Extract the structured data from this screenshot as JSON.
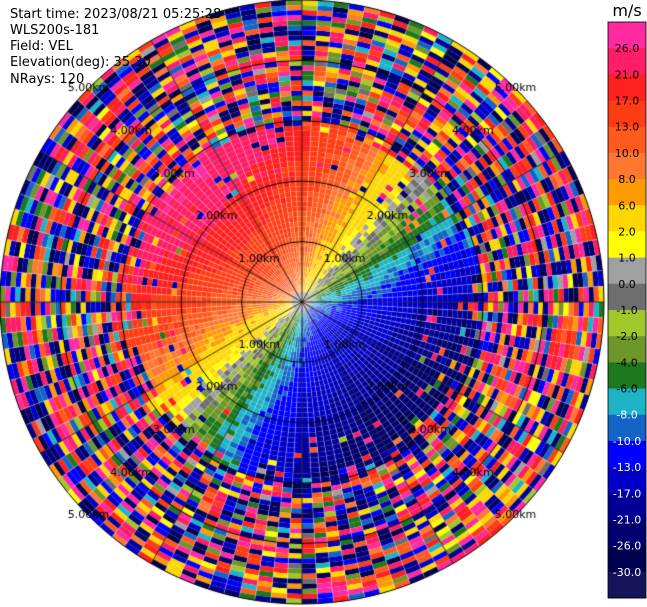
{
  "header": {
    "start_time": "Start time: 2023/08/21 05:25:28",
    "site": "WLS200s-181",
    "field": "Field: VEL",
    "elevation": "Elevation(deg): 35.30",
    "nrays": "NRays: 120"
  },
  "chart_data": {
    "type": "heatmap",
    "projection": "polar PPI",
    "n_rays": 120,
    "range_rings_km": [
      1,
      2,
      3,
      4,
      5
    ],
    "range_ring_labels": [
      "1.00km",
      "2.00km",
      "3.00km",
      "4.00km",
      "5.00km"
    ],
    "colorbar": {
      "unit": "m/s",
      "tick_labels": [
        "26.0",
        "21.0",
        "17.0",
        "13.0",
        "10.0",
        "8.0",
        "6.0",
        "2.0",
        "1.0",
        "0.0",
        "-1.0",
        "-2.0",
        "-4.0",
        "-6.0",
        "-8.0",
        "-10.0",
        "-13.0",
        "-17.0",
        "-21.0",
        "-26.0",
        "-30.0"
      ],
      "colors": [
        "#ff2aa0",
        "#ff1e66",
        "#ff2020",
        "#ff3c14",
        "#ff5a1e",
        "#ff7832",
        "#ff9b00",
        "#ffd700",
        "#ffff00",
        "#a0a0a0",
        "#6e6e6e",
        "#a0c828",
        "#6e9628",
        "#1e781e",
        "#1eb4c8",
        "#1464c8",
        "#0000ff",
        "#0000c8",
        "#000096",
        "#00006e",
        "#000050",
        "#14145a"
      ]
    },
    "velocity_pattern": {
      "positive_max_direction": "north-west",
      "negative_max_direction": "south-east",
      "clean_radius_km": 2.8,
      "noisy_beyond_km": 3.0
    }
  }
}
